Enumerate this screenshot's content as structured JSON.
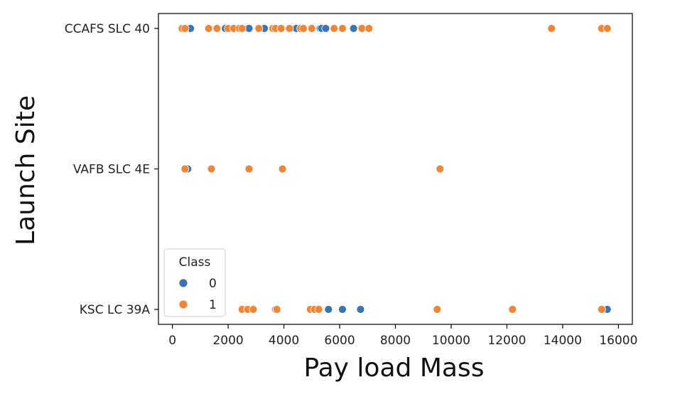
{
  "chart_data": {
    "type": "scatter",
    "title": "",
    "xlabel": "Pay load Mass",
    "ylabel": "Launch Site",
    "xlim": [
      -500,
      16500
    ],
    "x_ticks": [
      0,
      2000,
      4000,
      6000,
      8000,
      10000,
      12000,
      14000,
      16000
    ],
    "y_categories": [
      "CCAFS SLC 40",
      "VAFB SLC 4E",
      "KSC LC 39A"
    ],
    "grid": false,
    "legend": {
      "title": "Class",
      "placement": "lower-left",
      "entries": [
        {
          "label": "0",
          "color": "#3a75b0"
        },
        {
          "label": "1",
          "color": "#ef8536"
        }
      ]
    },
    "series": [
      {
        "name": "0",
        "color": "#3a75b0",
        "points": [
          {
            "x": 500,
            "y": "CCAFS SLC 40"
          },
          {
            "x": 650,
            "y": "CCAFS SLC 40"
          },
          {
            "x": 1900,
            "y": "CCAFS SLC 40"
          },
          {
            "x": 2700,
            "y": "CCAFS SLC 40"
          },
          {
            "x": 2750,
            "y": "CCAFS SLC 40"
          },
          {
            "x": 3300,
            "y": "CCAFS SLC 40"
          },
          {
            "x": 4400,
            "y": "CCAFS SLC 40"
          },
          {
            "x": 4450,
            "y": "CCAFS SLC 40"
          },
          {
            "x": 5300,
            "y": "CCAFS SLC 40"
          },
          {
            "x": 5350,
            "y": "CCAFS SLC 40"
          },
          {
            "x": 5500,
            "y": "CCAFS SLC 40"
          },
          {
            "x": 6500,
            "y": "CCAFS SLC 40"
          },
          {
            "x": 550,
            "y": "VAFB SLC 4E"
          },
          {
            "x": 5600,
            "y": "KSC LC 39A"
          },
          {
            "x": 6100,
            "y": "KSC LC 39A"
          },
          {
            "x": 6750,
            "y": "KSC LC 39A"
          },
          {
            "x": 15600,
            "y": "KSC LC 39A"
          }
        ]
      },
      {
        "name": "1",
        "color": "#ef8536",
        "points": [
          {
            "x": 350,
            "y": "CCAFS SLC 40"
          },
          {
            "x": 450,
            "y": "CCAFS SLC 40"
          },
          {
            "x": 1300,
            "y": "CCAFS SLC 40"
          },
          {
            "x": 1600,
            "y": "CCAFS SLC 40"
          },
          {
            "x": 2000,
            "y": "CCAFS SLC 40"
          },
          {
            "x": 2200,
            "y": "CCAFS SLC 40"
          },
          {
            "x": 2400,
            "y": "CCAFS SLC 40"
          },
          {
            "x": 2500,
            "y": "CCAFS SLC 40"
          },
          {
            "x": 3100,
            "y": "CCAFS SLC 40"
          },
          {
            "x": 3600,
            "y": "CCAFS SLC 40"
          },
          {
            "x": 3700,
            "y": "CCAFS SLC 40"
          },
          {
            "x": 3900,
            "y": "CCAFS SLC 40"
          },
          {
            "x": 4200,
            "y": "CCAFS SLC 40"
          },
          {
            "x": 4600,
            "y": "CCAFS SLC 40"
          },
          {
            "x": 4700,
            "y": "CCAFS SLC 40"
          },
          {
            "x": 5000,
            "y": "CCAFS SLC 40"
          },
          {
            "x": 5800,
            "y": "CCAFS SLC 40"
          },
          {
            "x": 6100,
            "y": "CCAFS SLC 40"
          },
          {
            "x": 6800,
            "y": "CCAFS SLC 40"
          },
          {
            "x": 7050,
            "y": "CCAFS SLC 40"
          },
          {
            "x": 13600,
            "y": "CCAFS SLC 40"
          },
          {
            "x": 15400,
            "y": "CCAFS SLC 40"
          },
          {
            "x": 15600,
            "y": "CCAFS SLC 40"
          },
          {
            "x": 450,
            "y": "VAFB SLC 4E"
          },
          {
            "x": 1400,
            "y": "VAFB SLC 4E"
          },
          {
            "x": 2750,
            "y": "VAFB SLC 4E"
          },
          {
            "x": 3950,
            "y": "VAFB SLC 4E"
          },
          {
            "x": 9600,
            "y": "VAFB SLC 4E"
          },
          {
            "x": 2500,
            "y": "KSC LC 39A"
          },
          {
            "x": 2700,
            "y": "KSC LC 39A"
          },
          {
            "x": 2900,
            "y": "KSC LC 39A"
          },
          {
            "x": 3700,
            "y": "KSC LC 39A"
          },
          {
            "x": 3750,
            "y": "KSC LC 39A"
          },
          {
            "x": 4950,
            "y": "KSC LC 39A"
          },
          {
            "x": 5100,
            "y": "KSC LC 39A"
          },
          {
            "x": 5250,
            "y": "KSC LC 39A"
          },
          {
            "x": 9500,
            "y": "KSC LC 39A"
          },
          {
            "x": 12200,
            "y": "KSC LC 39A"
          },
          {
            "x": 15400,
            "y": "KSC LC 39A"
          }
        ]
      }
    ]
  }
}
